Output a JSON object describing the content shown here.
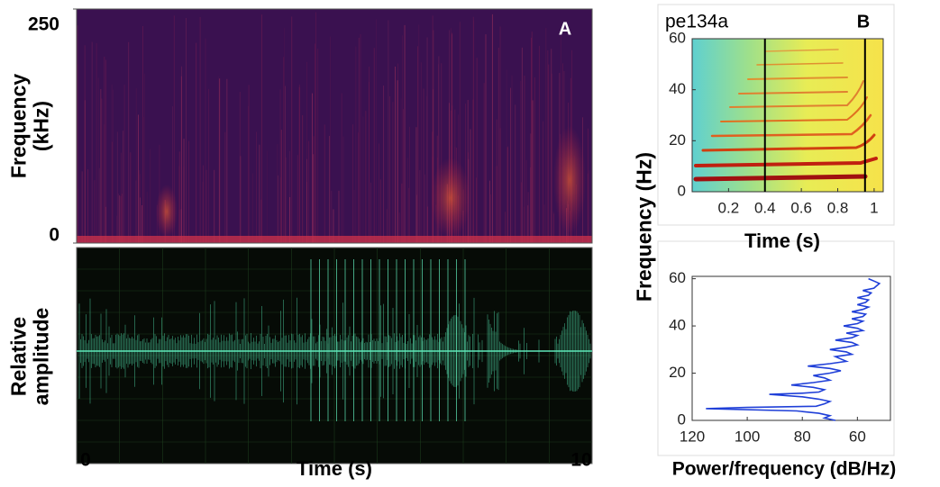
{
  "chart_data": [
    {
      "type": "spectrogram",
      "label": "A",
      "ylabel": "Frequency (kHz)",
      "ylim": [
        0,
        250
      ],
      "yticks": [
        0,
        250
      ]
    },
    {
      "type": "waveform",
      "ylabel": "Relative amplitude",
      "xlabel": "Time (s)",
      "xlim": [
        0,
        10
      ],
      "xticks": [
        0,
        10
      ]
    },
    {
      "type": "spectrogram",
      "label": "B",
      "title": "pe134a",
      "ylabel": "Frequency (Hz)",
      "xlabel": "Time (s)",
      "xlim": [
        0,
        1.05
      ],
      "xticks": [
        0.2,
        0.4,
        0.6,
        0.8,
        1
      ],
      "ylim": [
        0,
        60
      ],
      "yticks": [
        0,
        20,
        40,
        60
      ],
      "markers": [
        0.4,
        0.95
      ]
    },
    {
      "type": "line",
      "xlabel": "Power/frequency (dB/Hz)",
      "color": "#1f3fd8",
      "xlim": [
        120,
        48
      ],
      "xticks": [
        120,
        100,
        80,
        60
      ],
      "ylim": [
        0,
        61
      ],
      "yticks": [
        0,
        20,
        40,
        60
      ],
      "values": [
        0,
        1,
        2,
        3,
        4,
        5,
        5.5,
        6,
        7,
        8,
        9,
        10,
        11,
        11.5,
        12,
        13,
        14,
        15,
        16,
        17,
        18,
        19,
        20,
        21,
        22,
        23,
        24,
        25,
        26,
        27,
        28,
        29,
        30,
        31,
        32,
        33,
        34,
        35,
        36,
        37,
        38,
        39,
        40,
        41,
        42,
        43,
        44,
        45,
        46,
        47,
        48,
        49,
        50,
        51,
        52,
        53,
        54,
        55,
        56,
        57,
        58,
        59,
        60
      ],
      "x": [
        68,
        72,
        70,
        74,
        82,
        115,
        100,
        75,
        72,
        70,
        74,
        80,
        92,
        80,
        74,
        72,
        76,
        84,
        76,
        70,
        72,
        76,
        70,
        66,
        70,
        78,
        70,
        64,
        66,
        68,
        62,
        64,
        70,
        64,
        60,
        62,
        68,
        62,
        60,
        64,
        58,
        60,
        65,
        60,
        58,
        62,
        58,
        57,
        62,
        58,
        56,
        60,
        57,
        56,
        60,
        56,
        55,
        58,
        54,
        53,
        52,
        54,
        56
      ]
    }
  ]
}
